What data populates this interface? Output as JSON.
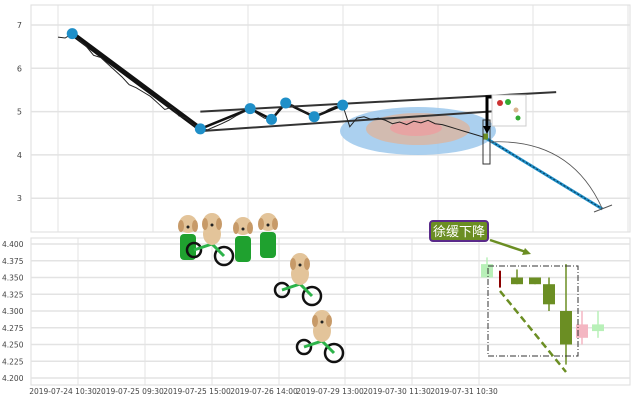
{
  "chart_data": [
    {
      "type": "line",
      "panel": "top",
      "y_ticks": [
        "7",
        "6",
        "5",
        "4",
        "3"
      ],
      "ylim": [
        2.6,
        7.4
      ],
      "grid": true,
      "series": [
        {
          "values": [
            6.72,
            6.7,
            6.8,
            6.65,
            6.5,
            6.3,
            6.25,
            6.1,
            5.95,
            5.8,
            5.62,
            5.55,
            5.45,
            5.35,
            5.2,
            5.05,
            5.1,
            4.9,
            4.85,
            4.7,
            4.6,
            4.58,
            4.65,
            4.72,
            4.8,
            4.9,
            4.98,
            5.07,
            4.95,
            4.85,
            4.82,
            5.05,
            5.2,
            5.15,
            5.05,
            4.95,
            4.88,
            4.95,
            5.05,
            5.12,
            5.15,
            4.65,
            4.85,
            4.88,
            4.82,
            4.85,
            4.8,
            4.72,
            4.76,
            4.7,
            4.78,
            4.74,
            4.8,
            4.72,
            4.7,
            4.65,
            4.6,
            4.55,
            4.5,
            4.45,
            4.4
          ]
        }
      ],
      "pivots": [
        2,
        20,
        27,
        30,
        32,
        36,
        40
      ],
      "trendlines": [
        {
          "from": [
            20,
            5.0
          ],
          "to": [
            70,
            5.45
          ],
          "color": "#333333"
        },
        {
          "from": [
            20,
            4.55
          ],
          "to": [
            65,
            5.05
          ],
          "color": "#333333"
        }
      ],
      "projection": {
        "from": [
          60,
          4.4
        ],
        "to": [
          76.5,
          2.75
        ],
        "color": "#1f8fc8"
      },
      "pivot_color": "#1f8fc8"
    },
    {
      "type": "candlestick",
      "panel": "bottom",
      "y_ticks": [
        "4.400",
        "4.375",
        "4.350",
        "4.325",
        "4.300",
        "4.275",
        "4.250",
        "4.225",
        "4.200"
      ],
      "ylim": [
        4.195,
        4.405
      ],
      "x_ticks": [
        "2019-07-24 10:30",
        "2019-07-25 09:30",
        "2019-07-25 15:00",
        "2019-07-26 14:00",
        "2019-07-29 13:00",
        "2019-07-30 11:30",
        "2019-07-31 10:30"
      ],
      "grid": true,
      "candles": [
        {
          "open": 4.35,
          "close": 4.37,
          "high": 4.38,
          "low": 4.35,
          "color": "#b8f0b8"
        },
        {
          "open": 4.36,
          "close": 4.335,
          "high": 4.36,
          "low": 4.335,
          "color": "#8b0000"
        },
        {
          "open": 4.35,
          "close": 4.34,
          "high": 4.362,
          "low": 4.34,
          "color": "#6b8e23"
        },
        {
          "open": 4.35,
          "close": 4.34,
          "high": 4.35,
          "low": 4.34,
          "color": "#6b8e23"
        },
        {
          "open": 4.34,
          "close": 4.31,
          "high": 4.35,
          "low": 4.3,
          "color": "#6b8e23"
        },
        {
          "open": 4.3,
          "close": 4.25,
          "high": 4.37,
          "low": 4.22,
          "color": "#6b8e23"
        },
        {
          "open": 4.26,
          "close": 4.28,
          "high": 4.3,
          "low": 4.25,
          "color": "#f4b6c2"
        },
        {
          "open": 4.27,
          "close": 4.28,
          "high": 4.3,
          "low": 4.26,
          "color": "#b8f0b8"
        }
      ],
      "annotation": {
        "text": "徐缓下降",
        "fill": "#6b8e23",
        "border": "#5a2a8a"
      }
    }
  ]
}
